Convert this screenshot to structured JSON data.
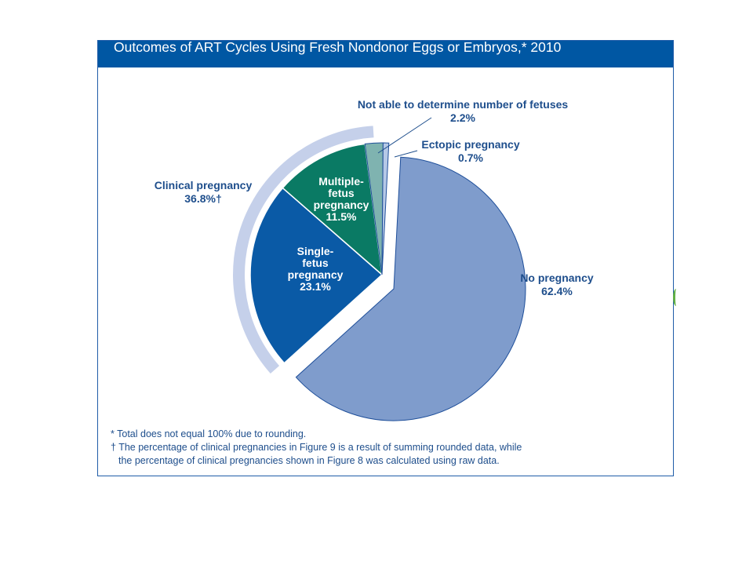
{
  "title": "Outcomes of ART Cycles Using Fresh Nondonor Eggs or Embryos,* 2010",
  "chart_data": {
    "type": "pie",
    "title": "Outcomes of ART Cycles Using Fresh Nondonor Eggs or Embryos,* 2010",
    "slices": [
      {
        "label": "No pregnancy",
        "value": 62.4,
        "display": "62.4%",
        "color": "#7f9ccc"
      },
      {
        "label": "Single-fetus pregnancy",
        "value": 23.1,
        "display": "23.1%",
        "color": "#0a5aa6"
      },
      {
        "label": "Multiple-fetus pregnancy",
        "value": 11.5,
        "display": "11.5%",
        "color": "#0a7a64"
      },
      {
        "label": "Not able to determine number of fetuses",
        "value": 2.2,
        "display": "2.2%",
        "color": "#7fb3b0"
      },
      {
        "label": "Ectopic pregnancy",
        "value": 0.7,
        "display": "0.7%",
        "color": "#b5c8e6"
      }
    ],
    "group": {
      "label": "Clinical pregnancy",
      "display": "36.8%†",
      "color": "#c5d0ea"
    }
  },
  "labels": {
    "single_1": "Single-",
    "single_2": "fetus",
    "single_3": "pregnancy",
    "single_val": "23.1%",
    "multi_1": "Multiple-",
    "multi_2": "fetus",
    "multi_3": "pregnancy",
    "multi_val": "11.5%",
    "notable": "Not able to determine number of fetuses",
    "notable_val": "2.2%",
    "ectopic": "Ectopic pregnancy",
    "ectopic_val": "0.7%",
    "nopreg": "No pregnancy",
    "nopreg_val": "62.4%",
    "clinical": "Clinical pregnancy",
    "clinical_val": "36.8%†"
  },
  "footnotes": {
    "note1": "* Total does not equal 100% due to rounding.",
    "note2": "† The percentage of clinical pregnancies in Figure 9 is a result of summing rounded data, while",
    "note3": "the percentage of clinical pregnancies shown in Figure 8 was calculated using raw data."
  }
}
